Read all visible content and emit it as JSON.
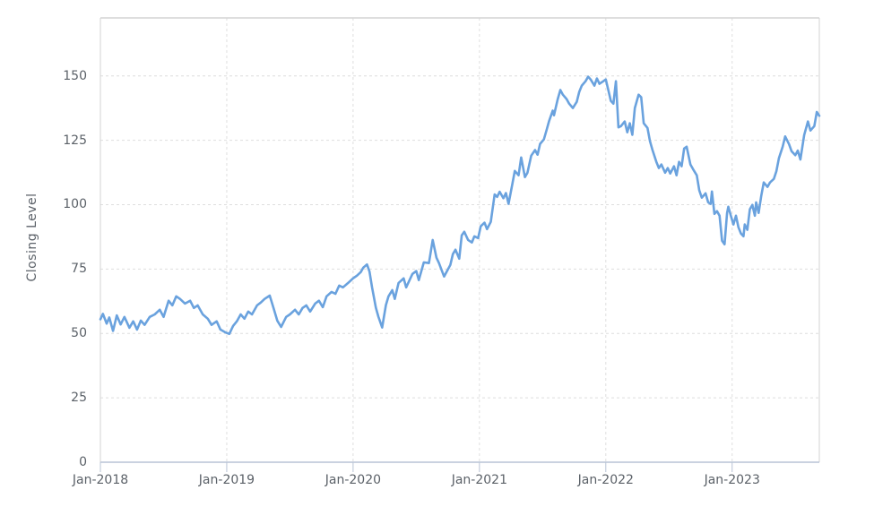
{
  "chart": {
    "colors": {
      "line": "#6aa2de",
      "grid": "#dedede",
      "plot_border": "#d3d3d3",
      "x_axis_line": "#b9c4d6",
      "tick_text": "#5b6168"
    }
  },
  "chart_data": {
    "type": "line",
    "title": "",
    "xlabel": "",
    "ylabel": "Closing Level",
    "legend": "none",
    "grid": "dashed",
    "ylim": [
      0,
      172.5
    ],
    "xlim": [
      2018.0,
      2023.69
    ],
    "yticks": [
      0,
      25,
      50,
      75,
      100,
      125,
      150
    ],
    "xticks": [
      {
        "pos": 2018,
        "label": "Jan-2018"
      },
      {
        "pos": 2019,
        "label": "Jan-2019"
      },
      {
        "pos": 2020,
        "label": "Jan-2020"
      },
      {
        "pos": 2021,
        "label": "Jan-2021"
      },
      {
        "pos": 2022,
        "label": "Jan-2022"
      },
      {
        "pos": 2023,
        "label": "Jan-2023"
      }
    ],
    "series": [
      {
        "name": "Closing Level",
        "points": [
          [
            2018.0,
            55.5
          ],
          [
            2018.02,
            57.6
          ],
          [
            2018.05,
            53.8
          ],
          [
            2018.07,
            56.2
          ],
          [
            2018.1,
            51.0
          ],
          [
            2018.13,
            57.0
          ],
          [
            2018.16,
            53.5
          ],
          [
            2018.19,
            56.4
          ],
          [
            2018.23,
            52.2
          ],
          [
            2018.26,
            54.7
          ],
          [
            2018.29,
            51.5
          ],
          [
            2018.32,
            55.0
          ],
          [
            2018.35,
            53.3
          ],
          [
            2018.39,
            56.4
          ],
          [
            2018.43,
            57.4
          ],
          [
            2018.47,
            59.2
          ],
          [
            2018.5,
            56.4
          ],
          [
            2018.54,
            62.7
          ],
          [
            2018.57,
            60.9
          ],
          [
            2018.6,
            64.4
          ],
          [
            2018.63,
            63.4
          ],
          [
            2018.67,
            61.6
          ],
          [
            2018.71,
            62.7
          ],
          [
            2018.74,
            59.9
          ],
          [
            2018.77,
            60.9
          ],
          [
            2018.81,
            57.4
          ],
          [
            2018.85,
            55.7
          ],
          [
            2018.88,
            53.3
          ],
          [
            2018.92,
            54.7
          ],
          [
            2018.95,
            51.5
          ],
          [
            2018.99,
            50.4
          ],
          [
            2019.02,
            49.8
          ],
          [
            2019.05,
            52.9
          ],
          [
            2019.08,
            54.7
          ],
          [
            2019.11,
            57.4
          ],
          [
            2019.14,
            55.7
          ],
          [
            2019.17,
            58.5
          ],
          [
            2019.2,
            57.4
          ],
          [
            2019.24,
            60.9
          ],
          [
            2019.27,
            62.0
          ],
          [
            2019.3,
            63.4
          ],
          [
            2019.34,
            64.7
          ],
          [
            2019.37,
            59.9
          ],
          [
            2019.4,
            55.0
          ],
          [
            2019.43,
            52.5
          ],
          [
            2019.47,
            56.4
          ],
          [
            2019.5,
            57.4
          ],
          [
            2019.54,
            59.2
          ],
          [
            2019.57,
            57.4
          ],
          [
            2019.6,
            59.9
          ],
          [
            2019.63,
            60.9
          ],
          [
            2019.66,
            58.5
          ],
          [
            2019.7,
            61.6
          ],
          [
            2019.73,
            62.7
          ],
          [
            2019.76,
            60.2
          ],
          [
            2019.79,
            64.4
          ],
          [
            2019.83,
            66.1
          ],
          [
            2019.86,
            65.4
          ],
          [
            2019.89,
            68.6
          ],
          [
            2019.92,
            67.9
          ],
          [
            2019.96,
            69.6
          ],
          [
            2020.0,
            71.4
          ],
          [
            2020.03,
            72.4
          ],
          [
            2020.06,
            73.8
          ],
          [
            2020.08,
            75.5
          ],
          [
            2020.11,
            76.8
          ],
          [
            2020.13,
            74.0
          ],
          [
            2020.15,
            68.0
          ],
          [
            2020.18,
            60.0
          ],
          [
            2020.2,
            56.5
          ],
          [
            2020.23,
            52.3
          ],
          [
            2020.26,
            61.0
          ],
          [
            2020.28,
            64.4
          ],
          [
            2020.31,
            66.8
          ],
          [
            2020.33,
            63.4
          ],
          [
            2020.36,
            69.6
          ],
          [
            2020.4,
            71.4
          ],
          [
            2020.42,
            67.9
          ],
          [
            2020.47,
            73.1
          ],
          [
            2020.5,
            74.2
          ],
          [
            2020.52,
            70.7
          ],
          [
            2020.56,
            77.6
          ],
          [
            2020.6,
            77.3
          ],
          [
            2020.63,
            86.3
          ],
          [
            2020.66,
            79.4
          ],
          [
            2020.68,
            77.3
          ],
          [
            2020.72,
            72.1
          ],
          [
            2020.75,
            74.8
          ],
          [
            2020.77,
            76.6
          ],
          [
            2020.79,
            80.8
          ],
          [
            2020.81,
            82.5
          ],
          [
            2020.84,
            79.0
          ],
          [
            2020.86,
            88.1
          ],
          [
            2020.88,
            89.5
          ],
          [
            2020.91,
            86.3
          ],
          [
            2020.94,
            85.3
          ],
          [
            2020.96,
            87.7
          ],
          [
            2020.99,
            87.0
          ],
          [
            2021.01,
            91.6
          ],
          [
            2021.04,
            93.0
          ],
          [
            2021.06,
            90.5
          ],
          [
            2021.09,
            93.3
          ],
          [
            2021.12,
            104.0
          ],
          [
            2021.14,
            103.0
          ],
          [
            2021.16,
            105.0
          ],
          [
            2021.19,
            102.5
          ],
          [
            2021.21,
            104.5
          ],
          [
            2021.23,
            100.3
          ],
          [
            2021.26,
            107.9
          ],
          [
            2021.28,
            113.1
          ],
          [
            2021.31,
            111.4
          ],
          [
            2021.33,
            118.3
          ],
          [
            2021.36,
            110.7
          ],
          [
            2021.38,
            112.4
          ],
          [
            2021.41,
            119.0
          ],
          [
            2021.44,
            121.2
          ],
          [
            2021.46,
            119.4
          ],
          [
            2021.48,
            123.6
          ],
          [
            2021.51,
            125.3
          ],
          [
            2021.53,
            128.8
          ],
          [
            2021.55,
            132.3
          ],
          [
            2021.58,
            136.5
          ],
          [
            2021.59,
            134.7
          ],
          [
            2021.62,
            141.0
          ],
          [
            2021.64,
            144.5
          ],
          [
            2021.66,
            142.7
          ],
          [
            2021.69,
            141.0
          ],
          [
            2021.71,
            139.2
          ],
          [
            2021.74,
            137.5
          ],
          [
            2021.77,
            139.9
          ],
          [
            2021.79,
            143.8
          ],
          [
            2021.81,
            146.2
          ],
          [
            2021.84,
            147.9
          ],
          [
            2021.86,
            149.7
          ],
          [
            2021.88,
            148.6
          ],
          [
            2021.91,
            146.2
          ],
          [
            2021.93,
            149.0
          ],
          [
            2021.95,
            146.9
          ],
          [
            2021.98,
            147.9
          ],
          [
            2022.0,
            148.6
          ],
          [
            2022.02,
            144.5
          ],
          [
            2022.04,
            140.3
          ],
          [
            2022.06,
            139.2
          ],
          [
            2022.08,
            147.9
          ],
          [
            2022.1,
            130.0
          ],
          [
            2022.12,
            130.5
          ],
          [
            2022.15,
            132.3
          ],
          [
            2022.17,
            128.1
          ],
          [
            2022.19,
            131.6
          ],
          [
            2022.21,
            127.1
          ],
          [
            2022.23,
            137.5
          ],
          [
            2022.26,
            142.7
          ],
          [
            2022.28,
            141.7
          ],
          [
            2022.3,
            131.6
          ],
          [
            2022.33,
            129.8
          ],
          [
            2022.35,
            124.6
          ],
          [
            2022.37,
            121.2
          ],
          [
            2022.4,
            116.6
          ],
          [
            2022.42,
            114.2
          ],
          [
            2022.44,
            115.6
          ],
          [
            2022.47,
            112.4
          ],
          [
            2022.49,
            114.2
          ],
          [
            2022.51,
            112.1
          ],
          [
            2022.54,
            114.9
          ],
          [
            2022.56,
            111.4
          ],
          [
            2022.58,
            116.6
          ],
          [
            2022.6,
            114.9
          ],
          [
            2022.62,
            121.8
          ],
          [
            2022.64,
            122.5
          ],
          [
            2022.67,
            115.6
          ],
          [
            2022.69,
            113.8
          ],
          [
            2022.72,
            111.4
          ],
          [
            2022.74,
            105.5
          ],
          [
            2022.76,
            102.7
          ],
          [
            2022.79,
            104.4
          ],
          [
            2022.81,
            100.9
          ],
          [
            2022.83,
            100.3
          ],
          [
            2022.84,
            105.1
          ],
          [
            2022.86,
            96.4
          ],
          [
            2022.88,
            97.5
          ],
          [
            2022.9,
            95.7
          ],
          [
            2022.92,
            86.0
          ],
          [
            2022.94,
            84.6
          ],
          [
            2022.96,
            96.8
          ],
          [
            2022.97,
            99.2
          ],
          [
            2022.99,
            95.7
          ],
          [
            2023.01,
            92.3
          ],
          [
            2023.03,
            95.7
          ],
          [
            2023.05,
            91.2
          ],
          [
            2023.07,
            88.8
          ],
          [
            2023.09,
            87.7
          ],
          [
            2023.1,
            92.3
          ],
          [
            2023.12,
            90.2
          ],
          [
            2023.14,
            98.2
          ],
          [
            2023.16,
            99.9
          ],
          [
            2023.18,
            95.7
          ],
          [
            2023.19,
            100.9
          ],
          [
            2023.21,
            96.8
          ],
          [
            2023.23,
            103.4
          ],
          [
            2023.25,
            108.6
          ],
          [
            2023.28,
            106.9
          ],
          [
            2023.3,
            108.6
          ],
          [
            2023.33,
            110.0
          ],
          [
            2023.35,
            113.0
          ],
          [
            2023.37,
            118.0
          ],
          [
            2023.4,
            122.5
          ],
          [
            2023.42,
            126.5
          ],
          [
            2023.45,
            123.5
          ],
          [
            2023.47,
            120.8
          ],
          [
            2023.5,
            119.2
          ],
          [
            2023.52,
            121.0
          ],
          [
            2023.54,
            117.5
          ],
          [
            2023.57,
            127.0
          ],
          [
            2023.6,
            132.3
          ],
          [
            2023.62,
            128.8
          ],
          [
            2023.65,
            130.5
          ],
          [
            2023.67,
            136.0
          ],
          [
            2023.69,
            134.5
          ]
        ]
      }
    ]
  }
}
